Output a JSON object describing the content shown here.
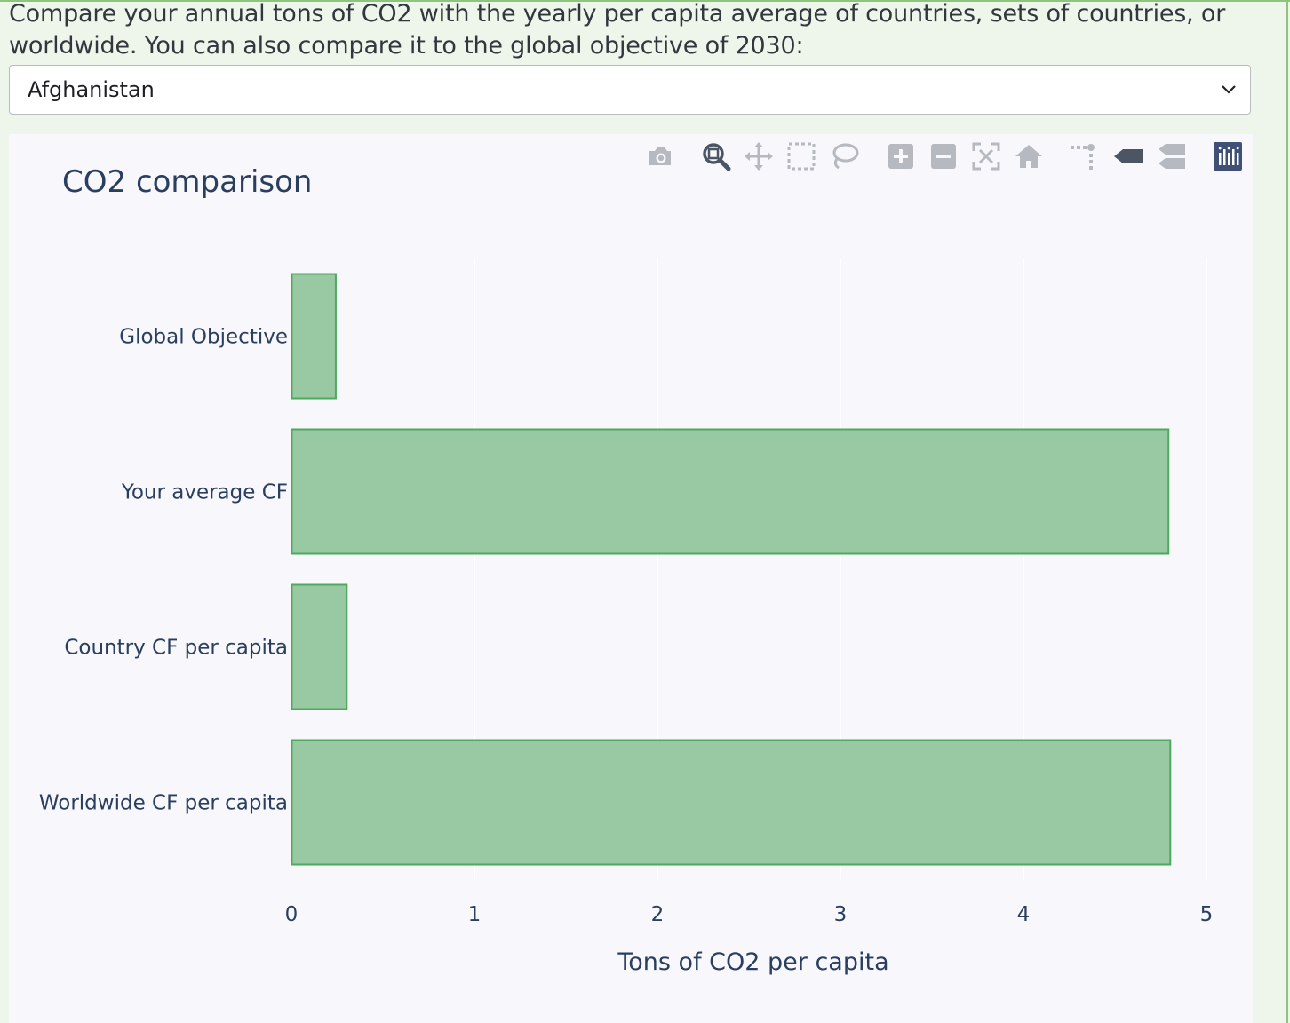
{
  "intro": {
    "text": "Compare your annual tons of CO2 with the yearly per capita average of countries, sets of countries, or worldwide. You can also compare it to the global objective of 2030:"
  },
  "country_select": {
    "value": "Afghanistan"
  },
  "modebar": {
    "icons": [
      "camera-icon",
      "zoom-icon",
      "pan-icon",
      "box-select-icon",
      "lasso-icon",
      "zoom-in-icon",
      "zoom-out-icon",
      "autoscale-icon",
      "reset-axes-icon",
      "spike-lines-icon",
      "hover-closest-icon",
      "hover-compare-icon",
      "plotly-logo-icon"
    ]
  },
  "chart_data": {
    "type": "bar",
    "orientation": "horizontal",
    "title": "CO2 comparison",
    "xlabel": "Tons of CO2 per capita",
    "ylabel": "",
    "categories": [
      "Global Objective",
      "Your average CF",
      "Country CF per capita",
      "Worldwide CF per capita"
    ],
    "values": [
      0.24,
      4.79,
      0.3,
      4.8
    ],
    "xlim": [
      0,
      5
    ],
    "xticks": [
      "0",
      "1",
      "2",
      "3",
      "4",
      "5"
    ],
    "bar_color": "#99c9a3",
    "bar_border_color": "#4daa5f",
    "grid": true
  }
}
